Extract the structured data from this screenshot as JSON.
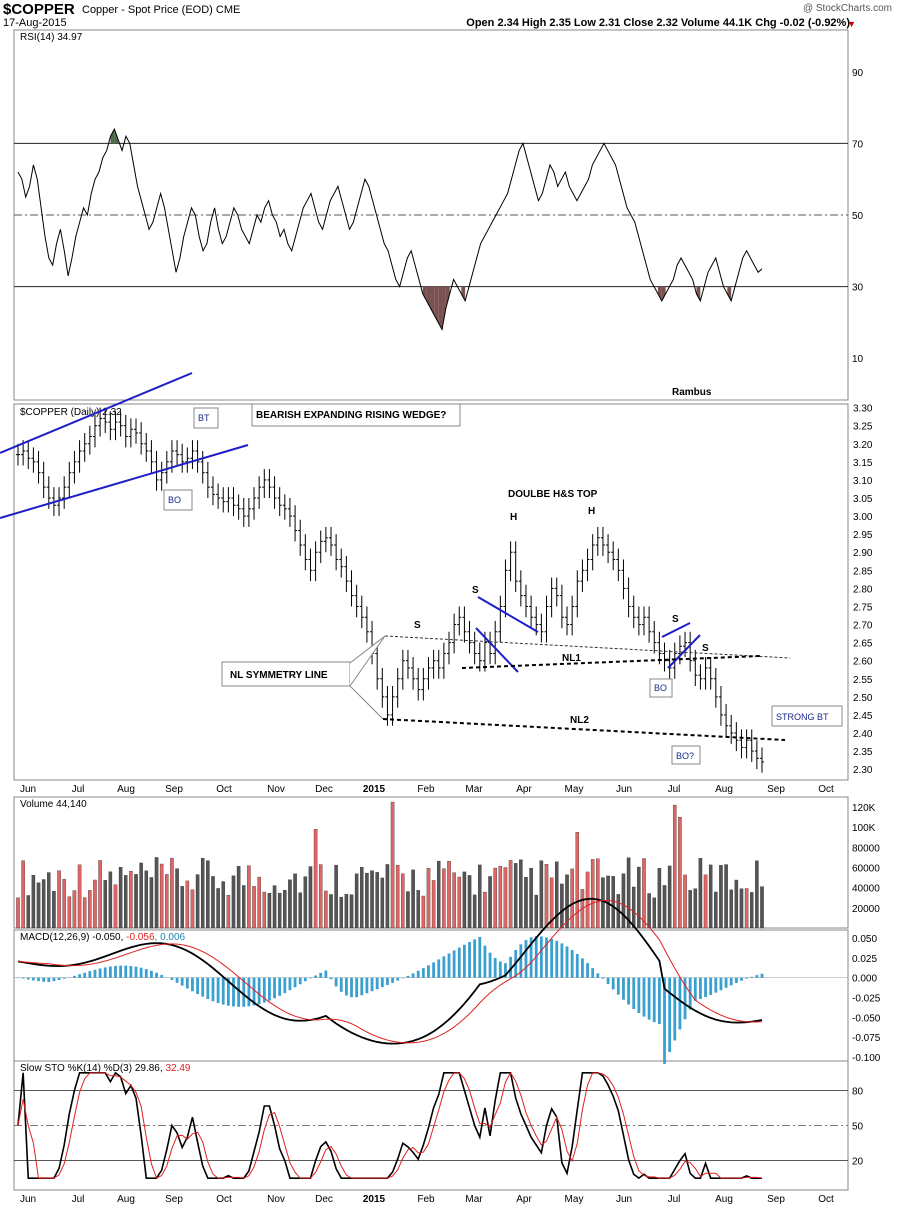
{
  "header": {
    "symbol": "$COPPER",
    "description": "Copper - Spot Price (EOD)  CME",
    "date": "17-Aug-2015",
    "watermark": "@ StockCharts.com",
    "ohlc": "Open 2.34  High 2.35  Low 2.31  Close 2.32  Volume 44.1K  Chg -0.02 (-0.92%)",
    "down_arrow": "▼"
  },
  "colors": {
    "up_bar": "#e06666",
    "down_bar": "#555555",
    "trendline": "#1e1ec8",
    "macd_hist": "#3aa0d0",
    "signal": "#e02020",
    "rsi_fill_high": "#4a6b4a",
    "rsi_fill_low": "#7a5050"
  },
  "chart_data": [
    {
      "type": "line",
      "panel": "rsi",
      "label": "RSI(14) 34.97",
      "yticks": [
        10,
        30,
        50,
        70,
        90
      ],
      "ylim": [
        0,
        100
      ],
      "reference_lines": [
        30,
        50,
        70
      ],
      "annotations": [
        "Rambus"
      ],
      "values": [
        62,
        60,
        55,
        58,
        64,
        60,
        52,
        44,
        38,
        36,
        42,
        46,
        40,
        33,
        38,
        44,
        48,
        52,
        50,
        56,
        60,
        62,
        66,
        68,
        72,
        74,
        71,
        68,
        72,
        70,
        64,
        58,
        54,
        50,
        46,
        48,
        52,
        56,
        52,
        46,
        40,
        34,
        38,
        44,
        48,
        52,
        50,
        44,
        40,
        42,
        48,
        52,
        46,
        42,
        44,
        48,
        52,
        50,
        46,
        44,
        42,
        46,
        50,
        48,
        52,
        54,
        50,
        48,
        44,
        46,
        42,
        40,
        44,
        48,
        52,
        54,
        56,
        52,
        48,
        46,
        50,
        54,
        56,
        58,
        54,
        50,
        46,
        48,
        52,
        56,
        60,
        58,
        54,
        50,
        46,
        42,
        40,
        36,
        32,
        30,
        34,
        38,
        40,
        36,
        32,
        28,
        26,
        24,
        22,
        20,
        18,
        24,
        28,
        32,
        30,
        28,
        26,
        30,
        34,
        38,
        42,
        44,
        46,
        48,
        50,
        52,
        54,
        56,
        60,
        64,
        68,
        70,
        66,
        62,
        58,
        54,
        56,
        60,
        64,
        62,
        58,
        60,
        62,
        58,
        56,
        54,
        56,
        58,
        60,
        64,
        66,
        68,
        70,
        68,
        66,
        64,
        60,
        56,
        52,
        50,
        48,
        44,
        40,
        36,
        32,
        30,
        28,
        26,
        28,
        30,
        32,
        36,
        38,
        36,
        34,
        32,
        28,
        26,
        30,
        34,
        36,
        38,
        34,
        30,
        28,
        26,
        30,
        34,
        38,
        40,
        38,
        36,
        34,
        35
      ],
      "fill_above_70": true,
      "fill_below_30": true
    },
    {
      "type": "ohlc",
      "panel": "price",
      "label": "$COPPER (Daily) 2.32",
      "yticks": [
        2.3,
        2.35,
        2.4,
        2.45,
        2.5,
        2.55,
        2.6,
        2.65,
        2.7,
        2.75,
        2.8,
        2.85,
        2.9,
        2.95,
        3.0,
        3.05,
        3.1,
        3.15,
        3.2,
        3.25,
        3.3
      ],
      "ylim": [
        2.27,
        3.31
      ],
      "x_labels": [
        "Jun",
        "Jul",
        "Aug",
        "Sep",
        "Oct",
        "Nov",
        "Dec",
        "2015",
        "Feb",
        "Mar",
        "Apr",
        "May",
        "Jun",
        "Jul",
        "Aug",
        "Sep",
        "Oct"
      ],
      "closes": [
        3.17,
        3.18,
        3.16,
        3.15,
        3.12,
        3.08,
        3.05,
        3.03,
        3.05,
        3.08,
        3.12,
        3.15,
        3.18,
        3.2,
        3.22,
        3.25,
        3.27,
        3.26,
        3.24,
        3.26,
        3.25,
        3.22,
        3.24,
        3.23,
        3.2,
        3.18,
        3.15,
        3.1,
        3.12,
        3.15,
        3.18,
        3.17,
        3.15,
        3.16,
        3.18,
        3.15,
        3.12,
        3.08,
        3.06,
        3.05,
        3.04,
        3.05,
        3.03,
        3.02,
        3.0,
        3.02,
        3.05,
        3.08,
        3.1,
        3.08,
        3.05,
        3.03,
        3.02,
        3.0,
        2.96,
        2.92,
        2.88,
        2.85,
        2.9,
        2.93,
        2.94,
        2.92,
        2.88,
        2.86,
        2.82,
        2.78,
        2.75,
        2.72,
        2.68,
        2.62,
        2.55,
        2.5,
        2.45,
        2.5,
        2.55,
        2.6,
        2.58,
        2.55,
        2.52,
        2.55,
        2.58,
        2.6,
        2.58,
        2.62,
        2.65,
        2.7,
        2.72,
        2.68,
        2.65,
        2.62,
        2.6,
        2.65,
        2.62,
        2.68,
        2.75,
        2.85,
        2.9,
        2.82,
        2.78,
        2.75,
        2.72,
        2.7,
        2.68,
        2.75,
        2.8,
        2.78,
        2.72,
        2.7,
        2.75,
        2.82,
        2.85,
        2.88,
        2.92,
        2.94,
        2.92,
        2.9,
        2.88,
        2.85,
        2.8,
        2.75,
        2.72,
        2.7,
        2.72,
        2.68,
        2.65,
        2.62,
        2.6,
        2.58,
        2.62,
        2.64,
        2.65,
        2.6,
        2.56,
        2.55,
        2.58,
        2.55,
        2.5,
        2.45,
        2.42,
        2.4,
        2.38,
        2.36,
        2.38,
        2.35,
        2.33,
        2.32
      ],
      "annotations": [
        {
          "text": "BEARISH EXPANDING RISING WEDGE?"
        },
        {
          "text": "BT"
        },
        {
          "text": "BO"
        },
        {
          "text": "DOULBE H&S TOP"
        },
        {
          "text": "H"
        },
        {
          "text": "H"
        },
        {
          "text": "S"
        },
        {
          "text": "S"
        },
        {
          "text": "S"
        },
        {
          "text": "S"
        },
        {
          "text": "NL SYMMETRY LINE"
        },
        {
          "text": "NL1"
        },
        {
          "text": "NL2"
        },
        {
          "text": "BO"
        },
        {
          "text": "BO?"
        },
        {
          "text": "STRONG BT"
        }
      ]
    },
    {
      "type": "bar",
      "panel": "volume",
      "label": "Volume 44,140",
      "yticks": [
        "20000",
        "40000",
        "60000",
        "80000",
        "100K",
        "120K"
      ],
      "ylim": [
        0,
        130000
      ]
    },
    {
      "type": "line",
      "panel": "macd",
      "label_prefix": "MACD(12,26,9)",
      "label_macd": "-0.050",
      "label_signal": "-0.056",
      "label_hist": "0.006",
      "yticks": [
        "0.050",
        "0.025",
        "0.000",
        "-0.025",
        "-0.050",
        "-0.075",
        "-0.100"
      ],
      "ylim": [
        -0.105,
        0.06
      ]
    },
    {
      "type": "line",
      "panel": "stochastic",
      "label_prefix": "Slow STO %K(14) %D(3)",
      "label_k": "29.86",
      "label_d": "32.49",
      "yticks": [
        20,
        50,
        80
      ],
      "ylim": [
        0,
        100
      ],
      "x_labels": [
        "Jun",
        "Jul",
        "Aug",
        "Sep",
        "Oct",
        "Nov",
        "Dec",
        "2015",
        "Feb",
        "Mar",
        "Apr",
        "May",
        "Jun",
        "Jul",
        "Aug",
        "Sep",
        "Oct"
      ]
    }
  ]
}
